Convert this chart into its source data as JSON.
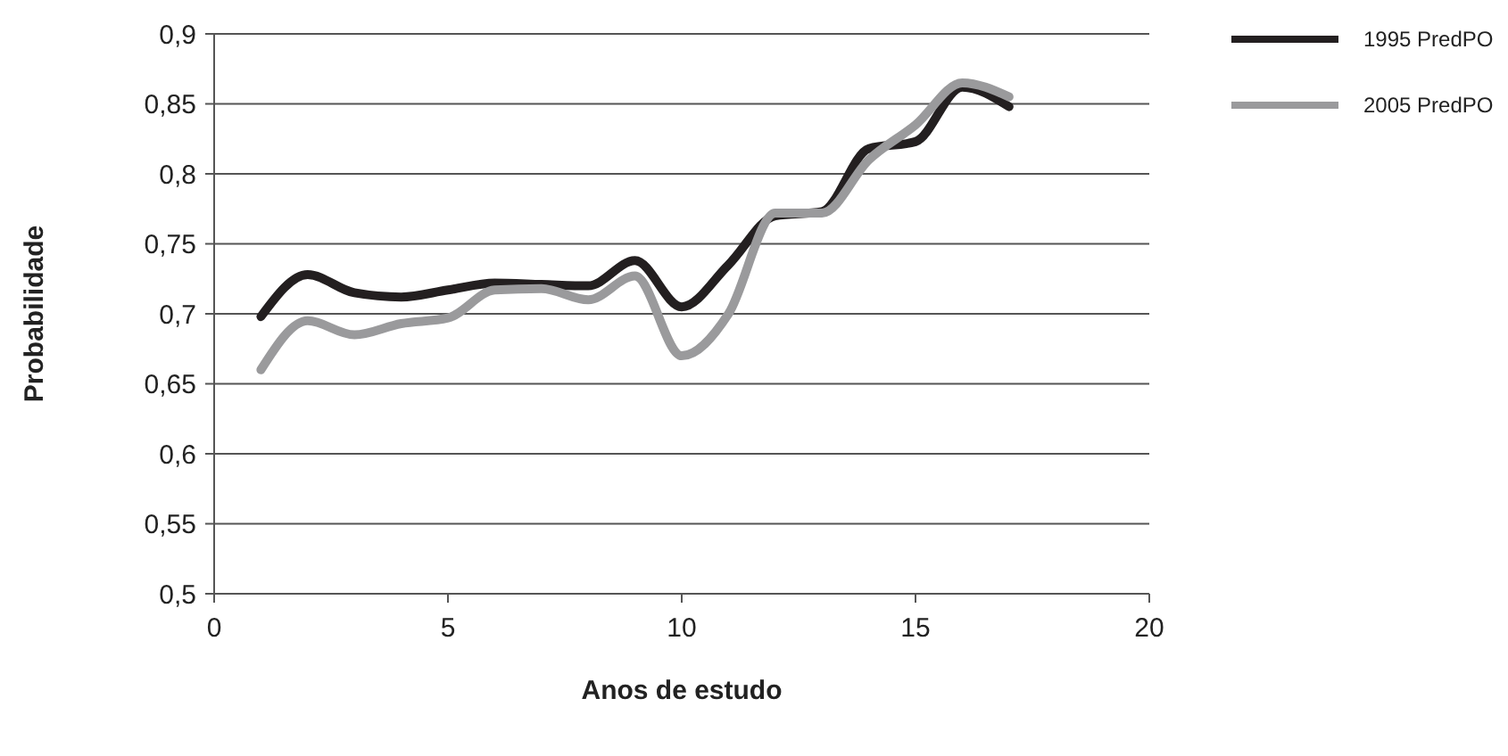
{
  "chart_data": {
    "type": "line",
    "xlabel": "Anos de estudo",
    "ylabel": "Probabilidade",
    "x": [
      1,
      2,
      3,
      4,
      5,
      6,
      7,
      8,
      9,
      10,
      11,
      12,
      13,
      14,
      15,
      16,
      17
    ],
    "series": [
      {
        "name": "1995 PredPO",
        "color": "#231f20",
        "values": [
          0.698,
          0.728,
          0.715,
          0.712,
          0.717,
          0.722,
          0.721,
          0.72,
          0.738,
          0.705,
          0.735,
          0.77,
          0.773,
          0.818,
          0.823,
          0.862,
          0.848
        ]
      },
      {
        "name": "2005 PredPO",
        "color": "#9a9a9c",
        "values": [
          0.66,
          0.695,
          0.685,
          0.693,
          0.697,
          0.717,
          0.718,
          0.71,
          0.727,
          0.67,
          0.7,
          0.772,
          0.772,
          0.81,
          0.835,
          0.865,
          0.855
        ]
      }
    ],
    "xlim": [
      0,
      20
    ],
    "xticks": [
      0,
      5,
      10,
      15,
      20
    ],
    "ylim": [
      0.5,
      0.9
    ],
    "yticks": [
      {
        "value": 0.5,
        "label": "0,5"
      },
      {
        "value": 0.55,
        "label": "0,55"
      },
      {
        "value": 0.6,
        "label": "0,6"
      },
      {
        "value": 0.65,
        "label": "0,65"
      },
      {
        "value": 0.7,
        "label": "0,7"
      },
      {
        "value": 0.75,
        "label": "0,75"
      },
      {
        "value": 0.8,
        "label": "0,8"
      },
      {
        "value": 0.85,
        "label": "0,85"
      },
      {
        "value": 0.9,
        "label": "0,9"
      }
    ],
    "grid": "y",
    "legend": "top right",
    "marker": "none",
    "line_style": "solid"
  }
}
